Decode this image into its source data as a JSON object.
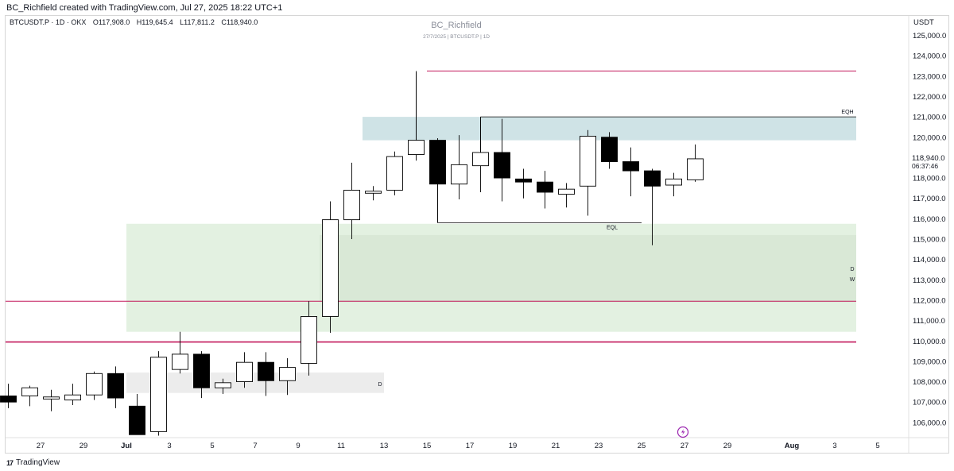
{
  "header": {
    "created_text": "BC_Richfield created with TradingView.com, Jul 27, 2025 18:22 UTC+1"
  },
  "legend": {
    "symbol": "BTCUSDT.P · 1D · OKX",
    "open": "O117,908.0",
    "high": "H119,645.4",
    "low": "L117,811.2",
    "close": "C118,940.0"
  },
  "watermark": {
    "title": "BC_Richfield",
    "subtitle": "27/7/2025 | BTCUSDT.P | 1D"
  },
  "footer": {
    "brand": "TradingView",
    "logo_icon": "tradingview-logo-icon"
  },
  "colors": {
    "bull_body": "#ffffff",
    "bear_body": "#000000",
    "wick": "#000000",
    "pink_line": "#c2185b",
    "blue_zone": "#cfe3e6",
    "green_zone": "#e3f1e1",
    "green_zone_inner": "#d9e8d6",
    "gray_zone": "#ececec",
    "price_label_bg": "#ffffff"
  },
  "chart_data": {
    "type": "candlestick",
    "title": "",
    "currency_label": "USDT",
    "y_ticks": [
      125000,
      124000,
      123000,
      122000,
      121000,
      120000,
      119000,
      118000,
      117000,
      116000,
      115000,
      114000,
      113000,
      112000,
      111000,
      110000,
      109000,
      108000,
      107000,
      106000
    ],
    "ylim": [
      105500,
      125500
    ],
    "x_ticks": [
      {
        "label": "27",
        "date": "2025-06-27"
      },
      {
        "label": "29",
        "date": "2025-06-29"
      },
      {
        "label": "Jul",
        "date": "2025-07-01",
        "bold": true
      },
      {
        "label": "3",
        "date": "2025-07-03"
      },
      {
        "label": "5",
        "date": "2025-07-05"
      },
      {
        "label": "7",
        "date": "2025-07-07"
      },
      {
        "label": "9",
        "date": "2025-07-09"
      },
      {
        "label": "11",
        "date": "2025-07-11"
      },
      {
        "label": "13",
        "date": "2025-07-13"
      },
      {
        "label": "15",
        "date": "2025-07-15"
      },
      {
        "label": "17",
        "date": "2025-07-17"
      },
      {
        "label": "19",
        "date": "2025-07-19"
      },
      {
        "label": "21",
        "date": "2025-07-21"
      },
      {
        "label": "23",
        "date": "2025-07-23"
      },
      {
        "label": "25",
        "date": "2025-07-25"
      },
      {
        "label": "27",
        "date": "2025-07-27"
      },
      {
        "label": "29",
        "date": "2025-07-29"
      },
      {
        "label": "Aug",
        "date": "2025-08-01",
        "bold": true
      },
      {
        "label": "3",
        "date": "2025-08-03"
      },
      {
        "label": "5",
        "date": "2025-08-05"
      }
    ],
    "candles": [
      {
        "date": "2025-06-26",
        "o": 107300,
        "h": 107900,
        "l": 106700,
        "c": 107000
      },
      {
        "date": "2025-06-27",
        "o": 107300,
        "h": 107800,
        "l": 106800,
        "c": 107700
      },
      {
        "date": "2025-06-28",
        "o": 107150,
        "h": 107600,
        "l": 106550,
        "c": 107250
      },
      {
        "date": "2025-06-29",
        "o": 107100,
        "h": 107900,
        "l": 106850,
        "c": 107350
      },
      {
        "date": "2025-06-30",
        "o": 107350,
        "h": 108500,
        "l": 107100,
        "c": 108400
      },
      {
        "date": "2025-07-01",
        "o": 108400,
        "h": 108750,
        "l": 106700,
        "c": 107200
      },
      {
        "date": "2025-07-02",
        "o": 106800,
        "h": 107400,
        "l": 105500,
        "c": 105400
      },
      {
        "date": "2025-07-03",
        "o": 105550,
        "h": 109500,
        "l": 105350,
        "c": 109200
      },
      {
        "date": "2025-07-04",
        "o": 108600,
        "h": 110450,
        "l": 108400,
        "c": 109350
      },
      {
        "date": "2025-07-05",
        "o": 109350,
        "h": 109500,
        "l": 107200,
        "c": 107700
      },
      {
        "date": "2025-07-06",
        "o": 107700,
        "h": 108150,
        "l": 107400,
        "c": 107950
      },
      {
        "date": "2025-07-07",
        "o": 108000,
        "h": 109450,
        "l": 107700,
        "c": 108950
      },
      {
        "date": "2025-07-08",
        "o": 108950,
        "h": 109450,
        "l": 107300,
        "c": 108050
      },
      {
        "date": "2025-07-09",
        "o": 108050,
        "h": 109150,
        "l": 107350,
        "c": 108700
      },
      {
        "date": "2025-07-10",
        "o": 108900,
        "h": 111950,
        "l": 108300,
        "c": 111200
      },
      {
        "date": "2025-07-11",
        "o": 111200,
        "h": 116850,
        "l": 110400,
        "c": 115950
      },
      {
        "date": "2025-07-12",
        "o": 115950,
        "h": 118750,
        "l": 115000,
        "c": 117400
      },
      {
        "date": "2025-07-13",
        "o": 117250,
        "h": 117600,
        "l": 116900,
        "c": 117350
      },
      {
        "date": "2025-07-14",
        "o": 117400,
        "h": 119300,
        "l": 117150,
        "c": 119050
      },
      {
        "date": "2025-07-15",
        "o": 119150,
        "h": 123200,
        "l": 118850,
        "c": 119850
      },
      {
        "date": "2025-07-16",
        "o": 119850,
        "h": 119950,
        "l": 115800,
        "c": 117700
      },
      {
        "date": "2025-07-17",
        "o": 117700,
        "h": 120100,
        "l": 116950,
        "c": 118650
      },
      {
        "date": "2025-07-18",
        "o": 118600,
        "h": 121000,
        "l": 117300,
        "c": 119250
      },
      {
        "date": "2025-07-19",
        "o": 119250,
        "h": 120900,
        "l": 116850,
        "c": 118000
      },
      {
        "date": "2025-07-20",
        "o": 117950,
        "h": 118450,
        "l": 117000,
        "c": 117800
      },
      {
        "date": "2025-07-21",
        "o": 117800,
        "h": 118350,
        "l": 116500,
        "c": 117300
      },
      {
        "date": "2025-07-22",
        "o": 117200,
        "h": 117750,
        "l": 116550,
        "c": 117450
      },
      {
        "date": "2025-07-23",
        "o": 117600,
        "h": 120350,
        "l": 116150,
        "c": 120050
      },
      {
        "date": "2025-07-24",
        "o": 120000,
        "h": 120250,
        "l": 118450,
        "c": 118800
      },
      {
        "date": "2025-07-25",
        "o": 118800,
        "h": 119500,
        "l": 117100,
        "c": 118350
      },
      {
        "date": "2025-07-26",
        "o": 118350,
        "h": 118450,
        "l": 114700,
        "c": 117600
      },
      {
        "date": "2025-07-27",
        "o": 117650,
        "h": 118250,
        "l": 117100,
        "c": 117950
      },
      {
        "date": "2025-07-28",
        "o": 117908,
        "h": 119645.4,
        "l": 117811.2,
        "c": 118940
      }
    ],
    "last_price": {
      "value": "118,940.0",
      "countdown": "06:37:46"
    },
    "horizontal_lines": [
      {
        "price": 123250,
        "from": "2025-07-15",
        "to": "2025-08-04",
        "color": "#c2185b"
      },
      {
        "price": 111950,
        "from": "2025-06-24",
        "to": "2025-08-04",
        "color": "#c2185b"
      },
      {
        "price": 109950,
        "from": "2025-06-24",
        "to": "2025-08-04",
        "color": "#c2185b",
        "thick": true
      }
    ],
    "level_lines": [
      {
        "label": "EQH",
        "price": 121000,
        "from": "2025-07-18",
        "to": "2025-08-04"
      },
      {
        "label": "EQL",
        "price": 115800,
        "from": "2025-07-16",
        "to": "2025-07-26"
      }
    ],
    "zones": [
      {
        "name": "blue-zone",
        "from": "2025-07-12",
        "to": "2025-08-04",
        "top": 121000,
        "bottom": 119850,
        "color": "#cfe3e6",
        "label": ""
      },
      {
        "name": "green-zone",
        "from": "2025-07-01",
        "to": "2025-08-04",
        "top": 115750,
        "bottom": 110450,
        "color": "#e3f1e1",
        "label": "D"
      },
      {
        "name": "green-zone-inner",
        "from": "2025-07-10",
        "to": "2025-08-04",
        "top": 115200,
        "bottom": 111900,
        "color": "#d9e8d6",
        "label": "W"
      },
      {
        "name": "gray-zone",
        "from": "2025-07-01",
        "to": "2025-07-13",
        "top": 108450,
        "bottom": 107450,
        "color": "#ececec",
        "label": "D"
      }
    ]
  }
}
